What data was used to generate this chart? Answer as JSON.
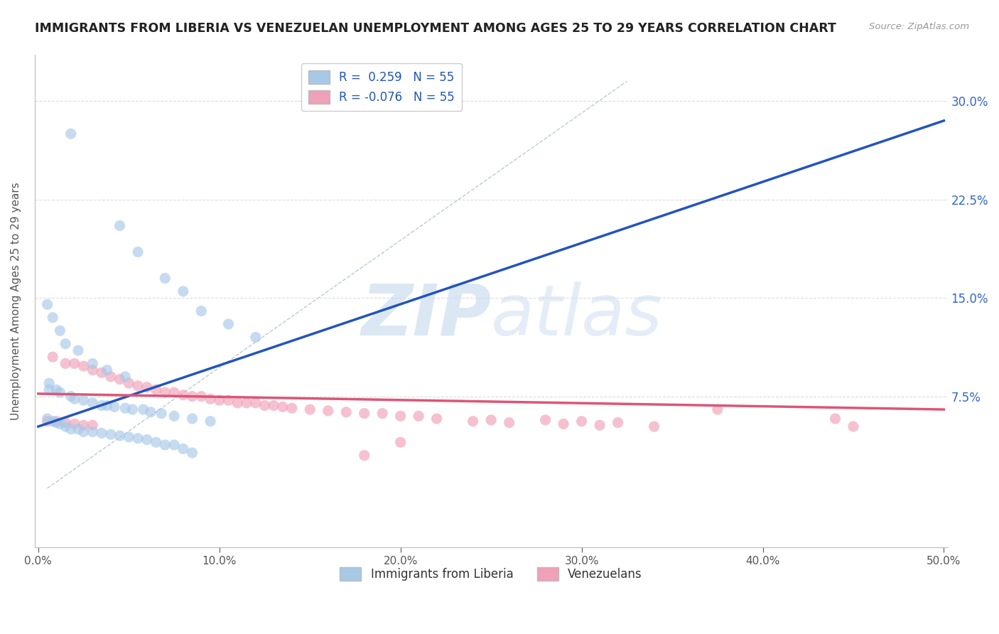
{
  "title": "IMMIGRANTS FROM LIBERIA VS VENEZUELAN UNEMPLOYMENT AMONG AGES 25 TO 29 YEARS CORRELATION CHART",
  "source": "Source: ZipAtlas.com",
  "ylabel": "Unemployment Among Ages 25 to 29 years",
  "xlabel": "",
  "xlim": [
    -0.002,
    0.502
  ],
  "ylim": [
    -0.04,
    0.335
  ],
  "xticks": [
    0.0,
    0.1,
    0.2,
    0.3,
    0.4,
    0.5
  ],
  "yticks_right": [
    0.075,
    0.15,
    0.225,
    0.3
  ],
  "ytick_labels_right": [
    "7.5%",
    "15.0%",
    "22.5%",
    "30.0%"
  ],
  "xtick_labels": [
    "0.0%",
    "10.0%",
    "20.0%",
    "30.0%",
    "40.0%",
    "50.0%"
  ],
  "blue_R": 0.259,
  "blue_N": 55,
  "pink_R": -0.076,
  "pink_N": 55,
  "blue_color": "#A8C8E8",
  "pink_color": "#F0A0B8",
  "blue_line_color": "#2255BB",
  "pink_line_color": "#DD5577",
  "legend_label_blue": "Immigrants from Liberia",
  "legend_label_pink": "Venezuelans",
  "watermark_zip": "ZIP",
  "watermark_atlas": "atlas",
  "blue_scatter_x": [
    0.018,
    0.045,
    0.055,
    0.07,
    0.08,
    0.09,
    0.105,
    0.12,
    0.005,
    0.008,
    0.012,
    0.015,
    0.022,
    0.03,
    0.038,
    0.048,
    0.006,
    0.006,
    0.01,
    0.012,
    0.018,
    0.02,
    0.025,
    0.03,
    0.035,
    0.038,
    0.042,
    0.048,
    0.052,
    0.058,
    0.062,
    0.068,
    0.075,
    0.085,
    0.095,
    0.005,
    0.008,
    0.01,
    0.012,
    0.015,
    0.018,
    0.022,
    0.025,
    0.03,
    0.035,
    0.04,
    0.045,
    0.05,
    0.055,
    0.06,
    0.065,
    0.07,
    0.075,
    0.08,
    0.085
  ],
  "blue_scatter_y": [
    0.275,
    0.205,
    0.185,
    0.165,
    0.155,
    0.14,
    0.13,
    0.12,
    0.145,
    0.135,
    0.125,
    0.115,
    0.11,
    0.1,
    0.095,
    0.09,
    0.085,
    0.08,
    0.08,
    0.078,
    0.075,
    0.073,
    0.072,
    0.07,
    0.068,
    0.068,
    0.067,
    0.066,
    0.065,
    0.065,
    0.063,
    0.062,
    0.06,
    0.058,
    0.056,
    0.058,
    0.056,
    0.055,
    0.054,
    0.052,
    0.05,
    0.05,
    0.048,
    0.048,
    0.047,
    0.046,
    0.045,
    0.044,
    0.043,
    0.042,
    0.04,
    0.038,
    0.038,
    0.035,
    0.032
  ],
  "pink_scatter_x": [
    0.008,
    0.015,
    0.02,
    0.025,
    0.03,
    0.035,
    0.04,
    0.045,
    0.05,
    0.055,
    0.06,
    0.065,
    0.07,
    0.075,
    0.08,
    0.085,
    0.09,
    0.095,
    0.1,
    0.105,
    0.11,
    0.115,
    0.12,
    0.125,
    0.13,
    0.135,
    0.14,
    0.15,
    0.16,
    0.17,
    0.18,
    0.19,
    0.2,
    0.21,
    0.22,
    0.25,
    0.28,
    0.3,
    0.32,
    0.005,
    0.01,
    0.015,
    0.02,
    0.025,
    0.03,
    0.375,
    0.44,
    0.45,
    0.24,
    0.26,
    0.29,
    0.31,
    0.34,
    0.2,
    0.18
  ],
  "pink_scatter_y": [
    0.105,
    0.1,
    0.1,
    0.098,
    0.095,
    0.093,
    0.09,
    0.088,
    0.085,
    0.083,
    0.082,
    0.08,
    0.078,
    0.078,
    0.076,
    0.075,
    0.075,
    0.073,
    0.072,
    0.072,
    0.07,
    0.07,
    0.07,
    0.068,
    0.068,
    0.067,
    0.066,
    0.065,
    0.064,
    0.063,
    0.062,
    0.062,
    0.06,
    0.06,
    0.058,
    0.057,
    0.057,
    0.056,
    0.055,
    0.056,
    0.056,
    0.055,
    0.054,
    0.053,
    0.053,
    0.065,
    0.058,
    0.052,
    0.056,
    0.055,
    0.054,
    0.053,
    0.052,
    0.04,
    0.03
  ],
  "blue_line_x0": 0.0,
  "blue_line_y0": 0.052,
  "blue_line_x1": 0.5,
  "blue_line_y1": 0.285,
  "pink_line_x0": 0.0,
  "pink_line_y0": 0.077,
  "pink_line_x1": 0.5,
  "pink_line_y1": 0.065,
  "diag_line_x0": 0.005,
  "diag_line_y0": 0.005,
  "diag_line_x1": 0.325,
  "diag_line_y1": 0.315,
  "grid_color": "#DDDDDD",
  "hgrid_style": "--",
  "background_color": "#FFFFFF"
}
